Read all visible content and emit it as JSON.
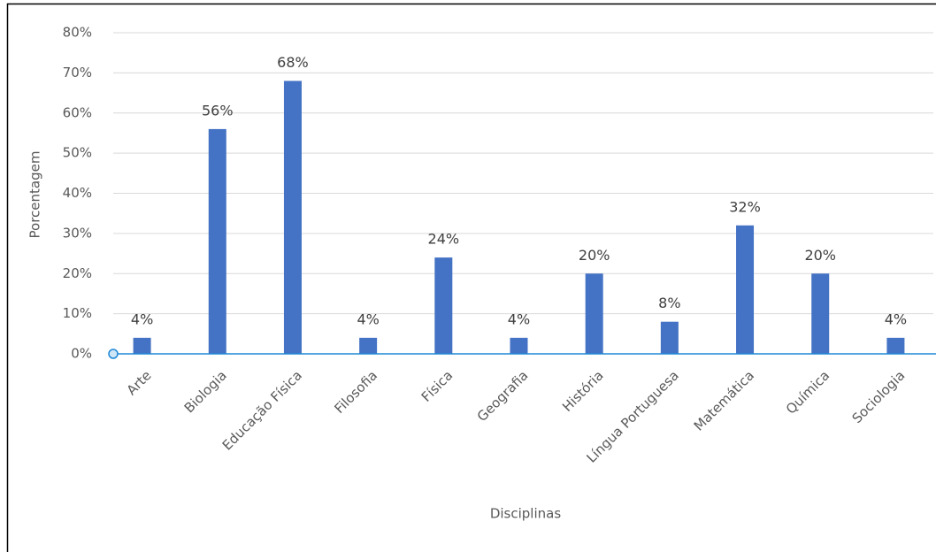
{
  "chart_data": {
    "type": "bar",
    "x_label": "Disciplinas",
    "y_label": "Porcentagem",
    "categories": [
      "Arte",
      "Biologia",
      "Educação Física",
      "Filosofia",
      "Física",
      "Geografia",
      "História",
      "Língua Portuguesa",
      "Matemática",
      "Química",
      "Sociologia"
    ],
    "values": [
      4,
      56,
      68,
      4,
      24,
      4,
      20,
      8,
      32,
      20,
      4
    ],
    "value_labels": [
      "4%",
      "56%",
      "68%",
      "4%",
      "24%",
      "4%",
      "20%",
      "8%",
      "32%",
      "20%",
      "4%"
    ],
    "color": "#4472c4",
    "ylim": [
      0,
      80
    ],
    "yticks": [
      {
        "value": 0,
        "label": "0%"
      },
      {
        "value": 10,
        "label": "10%"
      },
      {
        "value": 20,
        "label": "20%"
      },
      {
        "value": 30,
        "label": "30%"
      },
      {
        "value": 40,
        "label": "40%"
      },
      {
        "value": 50,
        "label": "50%"
      },
      {
        "value": 60,
        "label": "60%"
      },
      {
        "value": 70,
        "label": "70%"
      },
      {
        "value": 80,
        "label": "80%"
      }
    ],
    "grid": true
  }
}
